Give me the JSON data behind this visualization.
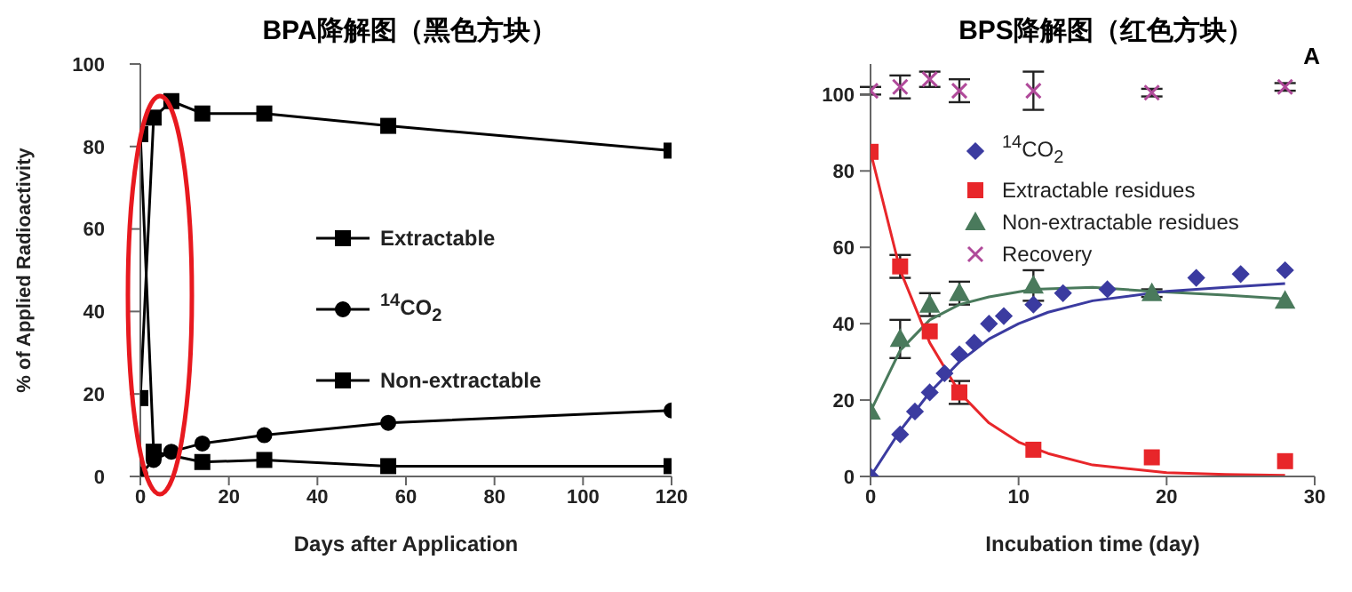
{
  "chart_data": [
    {
      "type": "line",
      "title": "BPA降解图（黑色方块）",
      "xlabel": "Days after Application",
      "ylabel": "% of Applied Radioactivity",
      "xlim": [
        0,
        120
      ],
      "xticks": [
        0,
        20,
        40,
        60,
        80,
        100,
        120
      ],
      "ylim": [
        0,
        100
      ],
      "yticks": [
        0,
        20,
        40,
        60,
        80,
        100
      ],
      "grid": false,
      "legend": "center",
      "series": [
        {
          "name": "Extractable",
          "color": "#000000",
          "marker": "square",
          "x": [
            0,
            3,
            7,
            14,
            28,
            56,
            120
          ],
          "values": [
            83,
            6,
            null,
            3.5,
            4,
            2.5,
            2.5
          ]
        },
        {
          "name": "$^{14}$CO$_{2}$",
          "color": "#000000",
          "marker": "circle",
          "x": [
            0,
            3,
            7,
            14,
            28,
            56,
            120
          ],
          "values": [
            0.5,
            4,
            6,
            8,
            10,
            13,
            16
          ]
        },
        {
          "name": "Non-extractable",
          "color": "#000000",
          "marker": "square",
          "x": [
            0,
            3,
            7,
            14,
            28,
            56,
            120
          ],
          "values": [
            19,
            87,
            91,
            88,
            88,
            85,
            79
          ]
        }
      ]
    },
    {
      "type": "scatter",
      "title": "BPS降解图（红色方块）",
      "xlabel": "Incubation time (day)",
      "xlim": [
        0,
        30
      ],
      "xticks": [
        0,
        10,
        20,
        30
      ],
      "ylim": [
        0,
        108
      ],
      "yticks": [
        0,
        20,
        40,
        60,
        80,
        100
      ],
      "grid": false,
      "legend": "top",
      "annotations": [
        "A"
      ],
      "series": [
        {
          "name": "$^{14}$CO$_{2}$",
          "color": "#3b3ba0",
          "marker": "diamond",
          "x": [
            0,
            2,
            3,
            4,
            5,
            6,
            7,
            8,
            9,
            11,
            13,
            16,
            19,
            22,
            25,
            28
          ],
          "values": [
            0,
            11,
            17,
            22,
            27,
            32,
            35,
            40,
            42,
            45,
            48,
            49,
            null,
            52,
            53,
            54
          ]
        },
        {
          "name": "Extractable residues",
          "color": "#e8262a",
          "marker": "square",
          "x": [
            0,
            2,
            4,
            6,
            11,
            19,
            28
          ],
          "values": [
            85,
            55,
            38,
            22,
            7,
            5,
            4
          ],
          "errors": [
            null,
            3,
            null,
            3,
            null,
            null,
            null
          ]
        },
        {
          "name": "Non-extractable residues",
          "color": "#4a7a5c",
          "marker": "triangle",
          "x": [
            0,
            2,
            4,
            6,
            11,
            19,
            28
          ],
          "values": [
            17,
            36,
            45,
            48,
            50,
            48,
            46
          ],
          "errors": [
            null,
            5,
            3,
            3,
            4,
            1,
            null
          ]
        },
        {
          "name": "Recovery",
          "color": "#b04a9a",
          "marker": "cross",
          "x": [
            0,
            2,
            4,
            6,
            11,
            19,
            28
          ],
          "values": [
            101,
            102,
            104,
            101,
            101,
            100.5,
            102
          ],
          "errors": [
            1,
            3,
            2,
            3,
            5,
            1,
            1
          ]
        },
        {
          "type": "line",
          "color": "#e8262a",
          "marker": "none",
          "x": [
            0,
            2,
            4,
            6,
            8,
            10,
            12,
            15,
            20,
            24,
            28
          ],
          "values": [
            85,
            54,
            35,
            22,
            14,
            9,
            6,
            3,
            1,
            0.5,
            0.3
          ]
        },
        {
          "type": "line",
          "color": "#4a7a5c",
          "marker": "none",
          "x": [
            0,
            2,
            4,
            6,
            8,
            11,
            15,
            19,
            24,
            28
          ],
          "values": [
            17,
            33,
            41,
            45,
            47,
            49,
            49.5,
            48.5,
            47.5,
            46.5
          ]
        },
        {
          "type": "line",
          "color": "#3b3ba0",
          "marker": "none",
          "x": [
            0,
            2,
            4,
            6,
            8,
            10,
            12,
            15,
            20,
            24,
            28
          ],
          "values": [
            0,
            12,
            22,
            30,
            36,
            40,
            43,
            46,
            48.5,
            49.5,
            50.5
          ]
        }
      ]
    }
  ]
}
